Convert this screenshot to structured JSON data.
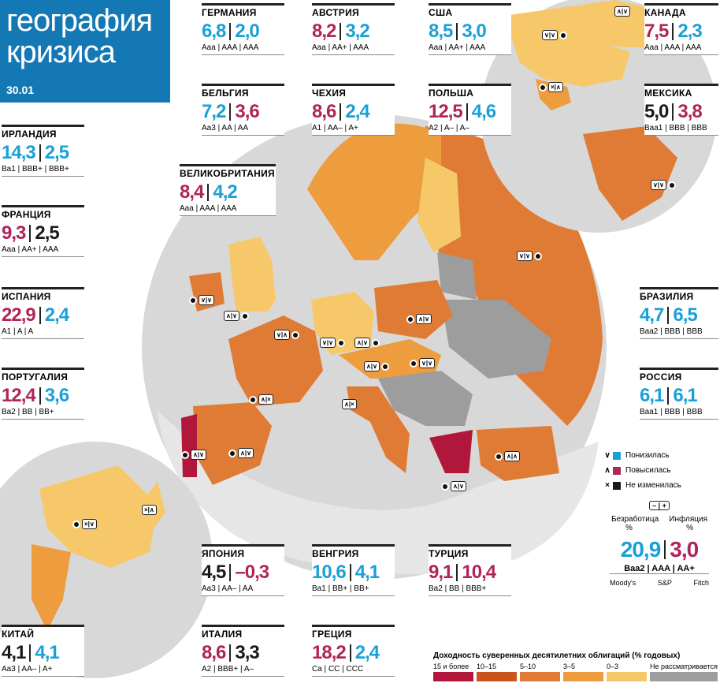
{
  "header": {
    "title_line1": "география",
    "title_line2": "кризиса",
    "date": "30.01"
  },
  "colors": {
    "down": "#1aa0d8",
    "up": "#b0245a",
    "same": "#1a1a1a",
    "header": "#1478b4"
  },
  "countries": {
    "germany": {
      "name": "ГЕРМАНИЯ",
      "unemployment": "6,8",
      "inflation": "2,0",
      "ratings": "Aaa | AAA | AAA",
      "u_trend": "down",
      "i_trend": "down"
    },
    "austria": {
      "name": "АВСТРИЯ",
      "unemployment": "8,2",
      "inflation": "3,2",
      "ratings": "Aaa | AA+ | AAA",
      "u_trend": "up",
      "i_trend": "down"
    },
    "usa": {
      "name": "США",
      "unemployment": "8,5",
      "inflation": "3,0",
      "ratings": "Aaa | AA+ | AAA",
      "u_trend": "down",
      "i_trend": "down"
    },
    "canada": {
      "name": "КАНАДА",
      "unemployment": "7,5",
      "inflation": "2,3",
      "ratings": "Aaa | AAA | AAA",
      "u_trend": "up",
      "i_trend": "down"
    },
    "belgium": {
      "name": "БЕЛЬГИЯ",
      "unemployment": "7,2",
      "inflation": "3,6",
      "ratings": "Aa3 | AA | AA",
      "u_trend": "down",
      "i_trend": "up"
    },
    "czech": {
      "name": "ЧЕХИЯ",
      "unemployment": "8,6",
      "inflation": "2,4",
      "ratings": "A1 | AA– | A+",
      "u_trend": "up",
      "i_trend": "down"
    },
    "poland": {
      "name": "ПОЛЬША",
      "unemployment": "12,5",
      "inflation": "4,6",
      "ratings": "A2 | A– | A–",
      "u_trend": "up",
      "i_trend": "down"
    },
    "mexico": {
      "name": "МЕКСИКА",
      "unemployment": "5,0",
      "inflation": "3,8",
      "ratings": "Baa1 | BBB | BBB",
      "u_trend": "same",
      "i_trend": "up"
    },
    "ireland": {
      "name": "ИРЛАНДИЯ",
      "unemployment": "14,3",
      "inflation": "2,5",
      "ratings": "Ba1 | BBB+ | BBB+",
      "u_trend": "down",
      "i_trend": "down"
    },
    "uk": {
      "name": "ВЕЛИКОБРИТАНИЯ",
      "unemployment": "8,4",
      "inflation": "4,2",
      "ratings": "Aaa | AAA | AAA",
      "u_trend": "up",
      "i_trend": "down"
    },
    "france": {
      "name": "ФРАНЦИЯ",
      "unemployment": "9,3",
      "inflation": "2,5",
      "ratings": "Aaa | AA+ | AAA",
      "u_trend": "up",
      "i_trend": "same"
    },
    "spain": {
      "name": "ИСПАНИЯ",
      "unemployment": "22,9",
      "inflation": "2,4",
      "ratings": "A1 | A | A",
      "u_trend": "up",
      "i_trend": "down"
    },
    "portugal": {
      "name": "ПОРТУГАЛИЯ",
      "unemployment": "12,4",
      "inflation": "3,6",
      "ratings": "Ba2 | BB | BB+",
      "u_trend": "up",
      "i_trend": "down"
    },
    "brazil": {
      "name": "БРАЗИЛИЯ",
      "unemployment": "4,7",
      "inflation": "6,5",
      "ratings": "Baa2 | BBB | BBB",
      "u_trend": "down",
      "i_trend": "down"
    },
    "russia": {
      "name": "РОССИЯ",
      "unemployment": "6,1",
      "inflation": "6,1",
      "ratings": "Baa1 | BBB | BBB",
      "u_trend": "down",
      "i_trend": "down"
    },
    "japan": {
      "name": "ЯПОНИЯ",
      "unemployment": "4,5",
      "inflation": "–0,3",
      "ratings": "Aa3 | AA– | AA",
      "u_trend": "same",
      "i_trend": "up"
    },
    "hungary": {
      "name": "ВЕНГРИЯ",
      "unemployment": "10,6",
      "inflation": "4,1",
      "ratings": "Ba1 | BB+ | BB+",
      "u_trend": "down",
      "i_trend": "down"
    },
    "turkey": {
      "name": "ТУРЦИЯ",
      "unemployment": "9,1",
      "inflation": "10,4",
      "ratings": "Ba2 | BB | BBB+",
      "u_trend": "up",
      "i_trend": "up"
    },
    "china": {
      "name": "КИТАЙ",
      "unemployment": "4,1",
      "inflation": "4,1",
      "ratings": "Aa3 | AA– | A+",
      "u_trend": "same",
      "i_trend": "down"
    },
    "italy": {
      "name": "ИТАЛИЯ",
      "unemployment": "8,6",
      "inflation": "3,3",
      "ratings": "A2 | BBB+ | A–",
      "u_trend": "up",
      "i_trend": "same"
    },
    "greece": {
      "name": "ГРЕЦИЯ",
      "unemployment": "18,2",
      "inflation": "2,4",
      "ratings": "Ca | CC | CCC",
      "u_trend": "up",
      "i_trend": "down"
    }
  },
  "pins": {
    "usa": "∨|∨",
    "canada": "∧|∨",
    "mexico": "×|∧",
    "brazil": "∨|∨",
    "russia": "∨|∨",
    "ireland": "∨|∨",
    "uk": "∧|∨",
    "france": "∧|×",
    "germany": "∨|∨",
    "belgium": "∨|∧",
    "czech": "∧|∨",
    "austria": "∧|∨",
    "poland": "∧|∨",
    "hungary": "∨|∨",
    "spain": "∧|∨",
    "portugal": "∧|∨",
    "italy": "∧|×",
    "greece": "∧|∨",
    "turkey": "∧|∧",
    "china": "×|∨",
    "japan": "×|∧"
  },
  "legend": {
    "down_label": "Понизилась",
    "up_label": "Повысилась",
    "same_label": "Не изменилась",
    "down_sym": "∨",
    "up_sym": "∧",
    "same_sym": "×",
    "toggle": "– | +",
    "unemployment_label": "Безработица",
    "inflation_label": "Инфляция",
    "pct": "%",
    "sample_unemployment": "20,9",
    "sample_inflation": "3,0",
    "sample_ratings": "Baa2 | AAA | AA+",
    "agency1": "Moody's",
    "agency2": "S&P",
    "agency3": "Fitch"
  },
  "yield_legend": {
    "title": "Доходность суверенных десятилетних облигаций (% годовых)",
    "bands": [
      {
        "label": "15 и более",
        "color": "#b0173a"
      },
      {
        "label": "10–15",
        "color": "#c8541e"
      },
      {
        "label": "5–10",
        "color": "#e07b35"
      },
      {
        "label": "3–5",
        "color": "#ed9d3e"
      },
      {
        "label": "0–3",
        "color": "#f7c86a"
      },
      {
        "label": "Не рассматривается",
        "color": "#9d9d9d"
      }
    ]
  }
}
